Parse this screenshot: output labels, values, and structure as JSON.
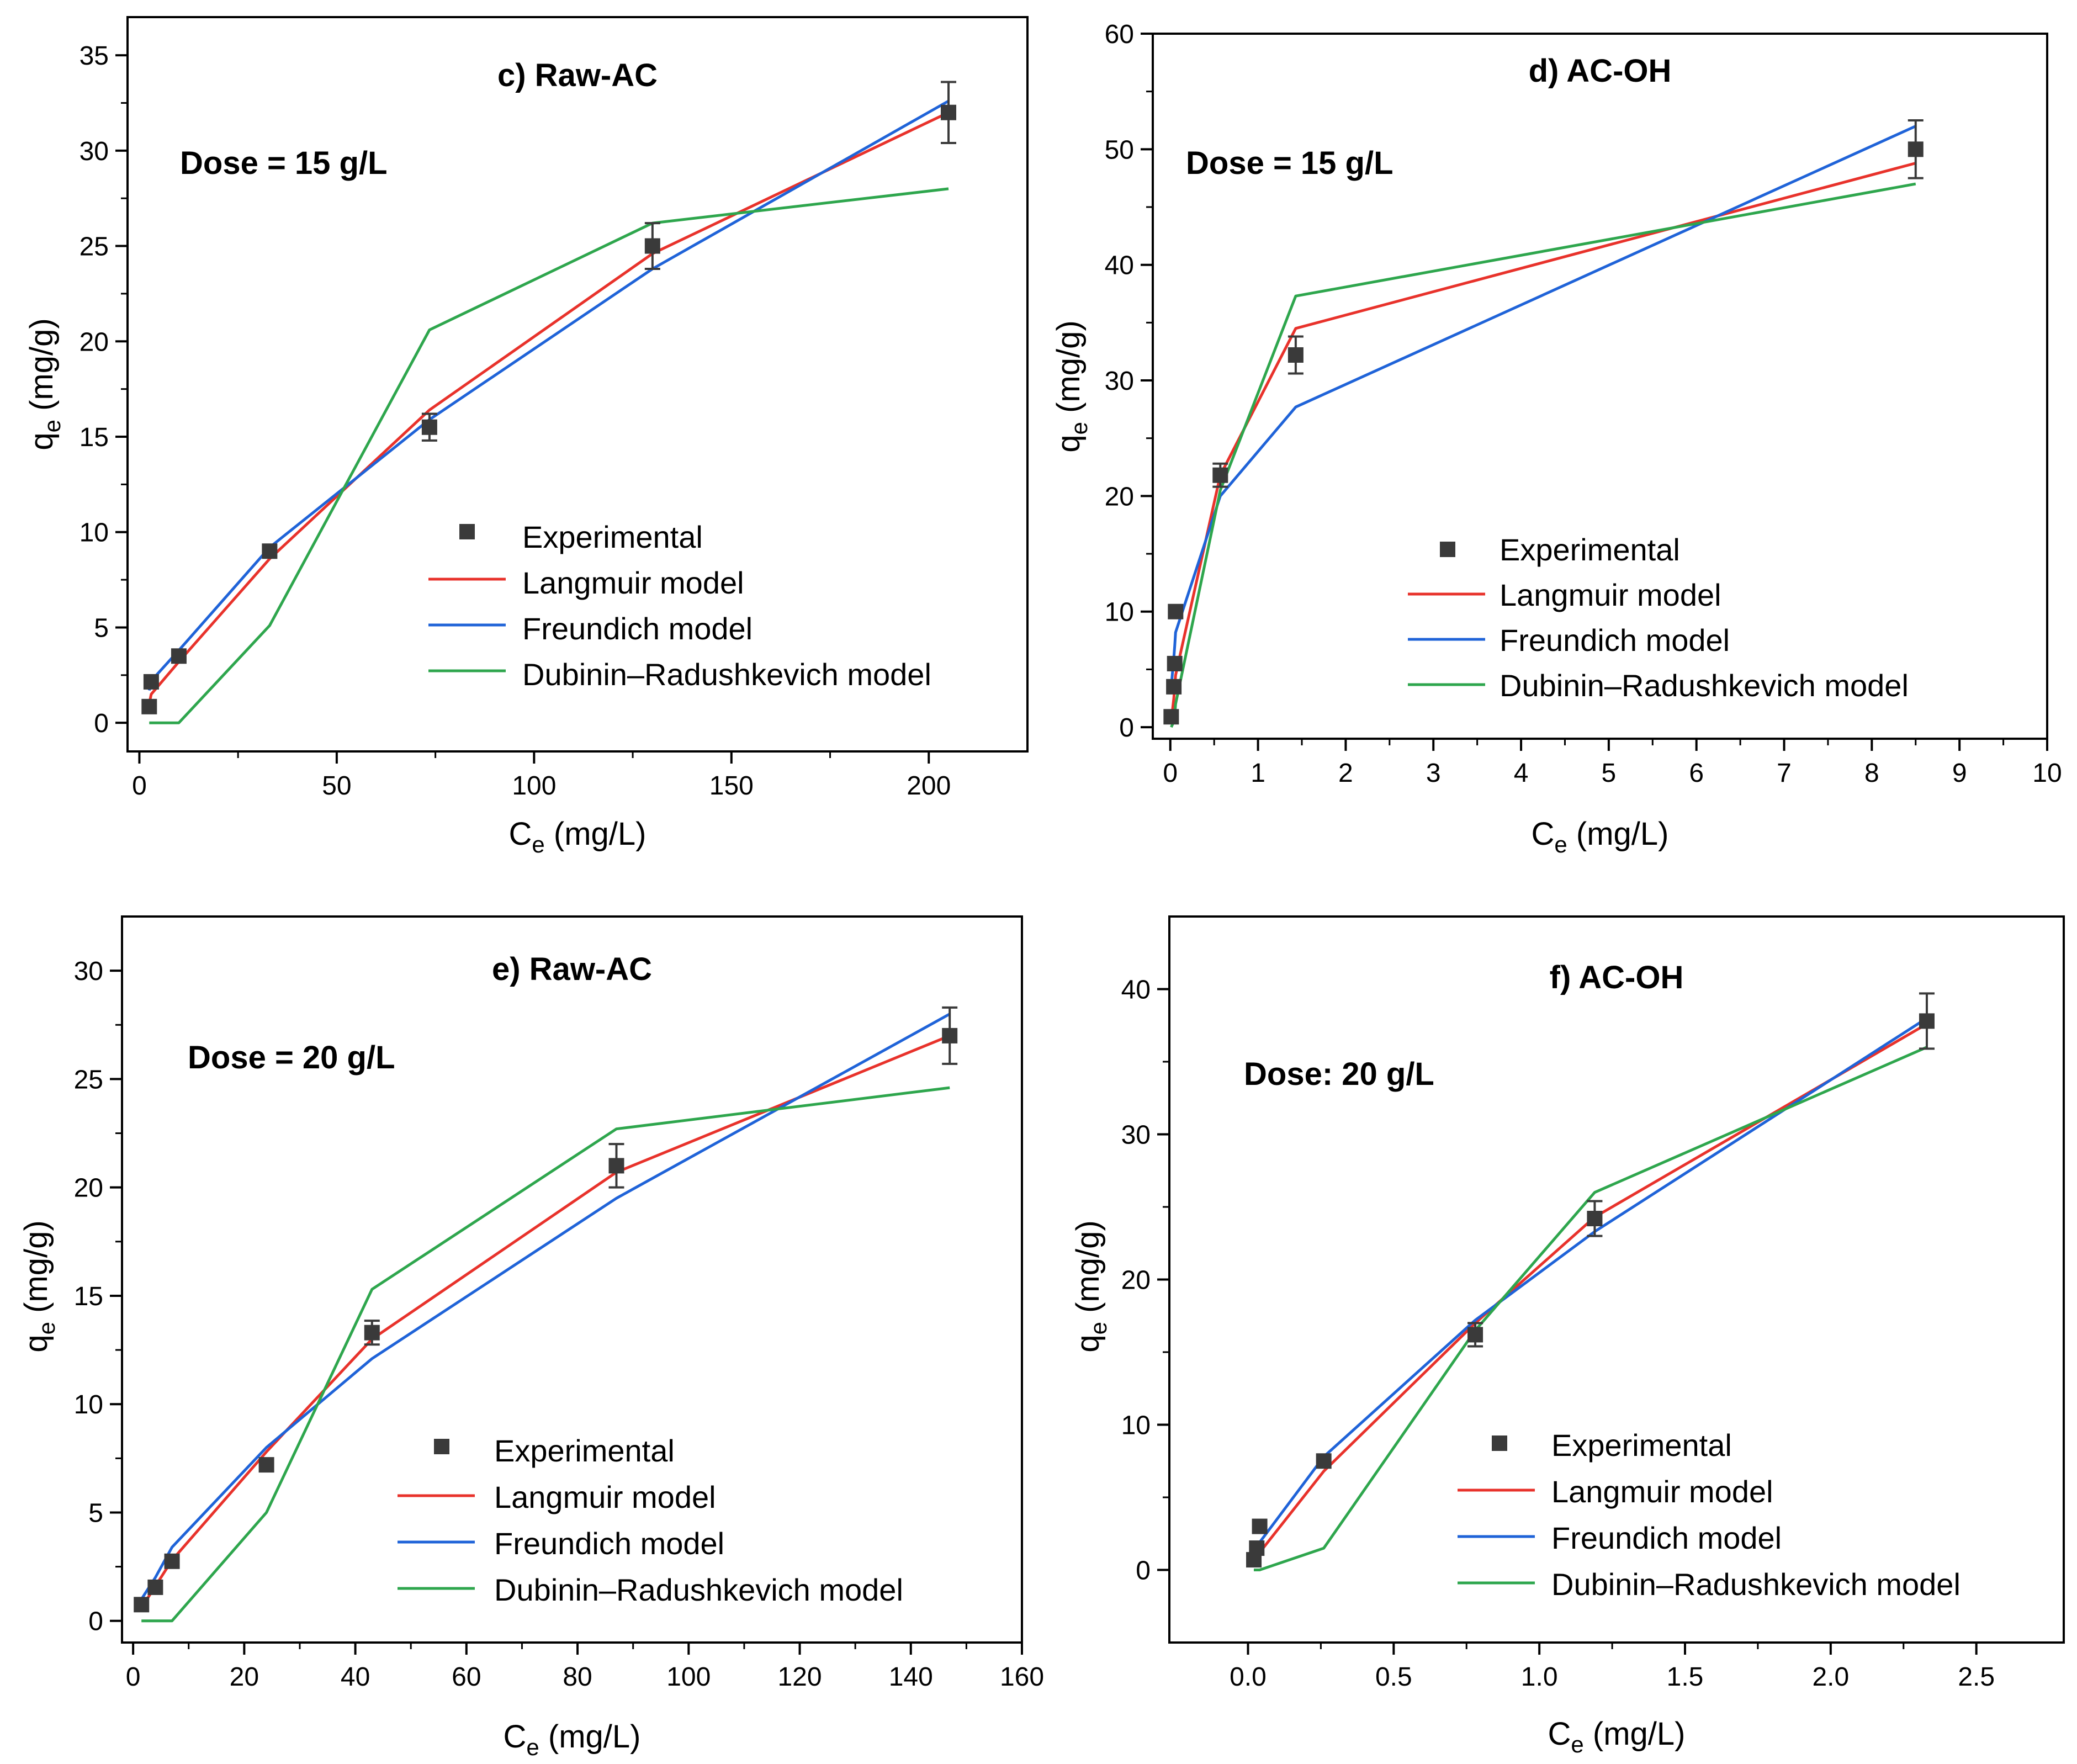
{
  "colors": {
    "experimental": "#3a3a3a",
    "langmuir": "#e8322b",
    "freundlich": "#1f63d8",
    "dr": "#2ea64d"
  },
  "legend": {
    "experimental": "Experimental",
    "langmuir": "Langmuir model",
    "freundlich": "Freundich model",
    "dr": "Dubinin–Radushkevich model"
  },
  "chart_data": [
    {
      "type": "scatter",
      "id": "c",
      "title": "c) Raw-AC",
      "annotation": "Dose = 15 g/L",
      "xlabel_main": "C",
      "xlabel_sub": "e",
      "xlabel_unit": " (mg/L)",
      "ylabel_main": "q",
      "ylabel_sub": "e",
      "ylabel_unit": " (mg/g)",
      "xlim": [
        -3,
        225
      ],
      "ylim": [
        -1.5,
        37
      ],
      "xticks": [
        0,
        50,
        100,
        150,
        200
      ],
      "yticks": [
        0,
        5,
        10,
        15,
        20,
        25,
        30,
        35
      ],
      "legend_position": "bottom-right",
      "experimental": {
        "x": [
          2.5,
          3,
          10,
          33,
          73.5,
          130,
          205
        ],
        "y": [
          0.85,
          2.15,
          3.5,
          9.0,
          15.5,
          25.0,
          32.0
        ],
        "err": [
          0,
          0,
          0,
          0,
          0.7,
          1.2,
          1.6
        ]
      },
      "series": [
        {
          "name": "Langmuir model",
          "key": "langmuir",
          "x": [
            2.5,
            3,
            10,
            33,
            73.5,
            130,
            205
          ],
          "y": [
            1.0,
            1.5,
            3.2,
            8.6,
            16.4,
            24.6,
            32.0
          ]
        },
        {
          "name": "Freundich model",
          "key": "freundlich",
          "x": [
            2.5,
            3,
            10,
            33,
            73.5,
            130,
            205
          ],
          "y": [
            1.7,
            2.2,
            3.8,
            9.2,
            15.9,
            23.8,
            32.6
          ]
        },
        {
          "name": "Dubinin–Radushkevich model",
          "key": "dr",
          "x": [
            2.5,
            10,
            33,
            73.5,
            130,
            205
          ],
          "y": [
            0,
            0,
            5.1,
            20.6,
            26.2,
            28.0
          ]
        }
      ]
    },
    {
      "type": "scatter",
      "id": "d",
      "title": "d) AC-OH",
      "annotation": "Dose = 15 g/L",
      "xlabel_main": "C",
      "xlabel_sub": "e",
      "xlabel_unit": " (mg/L)",
      "ylabel_main": "q",
      "ylabel_sub": "e",
      "ylabel_unit": " (mg/g)",
      "xlim": [
        -0.2,
        10
      ],
      "ylim": [
        -1,
        60
      ],
      "xticks": [
        0,
        1,
        2,
        3,
        4,
        5,
        6,
        7,
        8,
        9,
        10
      ],
      "yticks": [
        0,
        10,
        20,
        30,
        40,
        50,
        60
      ],
      "legend_position": "bottom-right",
      "experimental": {
        "x": [
          0.01,
          0.04,
          0.05,
          0.06,
          0.57,
          1.43,
          8.5
        ],
        "y": [
          0.9,
          3.5,
          5.5,
          10.0,
          21.8,
          32.2,
          50.0
        ],
        "err": [
          0,
          0,
          0,
          0,
          1.0,
          1.6,
          2.5
        ]
      },
      "series": [
        {
          "name": "Langmuir model",
          "key": "langmuir",
          "x": [
            0.01,
            0.04,
            0.05,
            0.06,
            0.57,
            1.43,
            8.5
          ],
          "y": [
            0.5,
            2.5,
            3.5,
            4.5,
            21.8,
            34.5,
            48.8
          ]
        },
        {
          "name": "Freundich model",
          "key": "freundlich",
          "x": [
            0.01,
            0.04,
            0.05,
            0.06,
            0.57,
            1.43,
            8.5
          ],
          "y": [
            3.5,
            6.0,
            7.0,
            8.2,
            20.0,
            27.7,
            52.0
          ]
        },
        {
          "name": "Dubinin–Radushkevich model",
          "key": "dr",
          "x": [
            0.01,
            0.04,
            0.05,
            0.06,
            0.57,
            1.43,
            8.5
          ],
          "y": [
            0.0,
            0.5,
            1.0,
            2.0,
            20.5,
            37.3,
            47.0
          ]
        }
      ]
    },
    {
      "type": "scatter",
      "id": "e",
      "title": "e) Raw-AC",
      "annotation": "Dose = 20 g/L",
      "xlabel_main": "C",
      "xlabel_sub": "e",
      "xlabel_unit": " (mg/L)",
      "ylabel_main": "q",
      "ylabel_sub": "e",
      "ylabel_unit": " (mg/g)",
      "xlim": [
        -2,
        160
      ],
      "ylim": [
        -1,
        32.5
      ],
      "xticks": [
        0,
        20,
        40,
        60,
        80,
        100,
        120,
        140,
        160
      ],
      "yticks": [
        0,
        5,
        10,
        15,
        20,
        25,
        30
      ],
      "legend_position": "bottom-right",
      "experimental": {
        "x": [
          1.5,
          4,
          7,
          24,
          43,
          87,
          147
        ],
        "y": [
          0.75,
          1.55,
          2.75,
          7.2,
          13.3,
          21.0,
          27.0
        ],
        "err": [
          0,
          0,
          0,
          0,
          0.55,
          1.0,
          1.3
        ]
      },
      "series": [
        {
          "name": "Langmuir model",
          "key": "langmuir",
          "x": [
            1.5,
            4,
            7,
            24,
            43,
            87,
            147
          ],
          "y": [
            0.6,
            1.6,
            2.8,
            7.8,
            13.0,
            20.7,
            27.0
          ]
        },
        {
          "name": "Freundich model",
          "key": "freundlich",
          "x": [
            1.5,
            4,
            7,
            24,
            43,
            87,
            147
          ],
          "y": [
            1.0,
            2.0,
            3.4,
            8.0,
            12.1,
            19.5,
            28.0
          ]
        },
        {
          "name": "Dubinin–Radushkevich model",
          "key": "dr",
          "x": [
            1.5,
            7,
            24,
            43,
            87,
            147
          ],
          "y": [
            0,
            0,
            5.0,
            15.3,
            22.7,
            24.6
          ]
        }
      ]
    },
    {
      "type": "scatter",
      "id": "f",
      "title": "f) AC-OH",
      "annotation": "Dose: 20 g/L",
      "xlabel_main": "C",
      "xlabel_sub": "e",
      "xlabel_unit": " (mg/L)",
      "ylabel_main": "q",
      "ylabel_sub": "e",
      "ylabel_unit": " (mg/g)",
      "xlim": [
        -0.27,
        2.8
      ],
      "ylim": [
        -5,
        45
      ],
      "xticks": [
        0.0,
        0.5,
        1.0,
        1.5,
        2.0,
        2.5
      ],
      "yticks": [
        0,
        10,
        20,
        30,
        40
      ],
      "legend_position": "bottom-right",
      "experimental": {
        "x": [
          0.02,
          0.03,
          0.04,
          0.26,
          0.78,
          1.19,
          2.33
        ],
        "y": [
          0.7,
          1.5,
          3.0,
          7.5,
          16.2,
          24.2,
          37.8
        ],
        "err": [
          0,
          0,
          0,
          0,
          0.8,
          1.2,
          1.9
        ]
      },
      "series": [
        {
          "name": "Langmuir model",
          "key": "langmuir",
          "x": [
            0.02,
            0.03,
            0.04,
            0.26,
            0.78,
            1.19,
            2.33
          ],
          "y": [
            0.5,
            0.9,
            1.2,
            6.8,
            17.0,
            24.3,
            37.6
          ]
        },
        {
          "name": "Freundich model",
          "key": "freundlich",
          "x": [
            0.02,
            0.03,
            0.04,
            0.26,
            0.78,
            1.19,
            2.33
          ],
          "y": [
            1.0,
            1.5,
            1.9,
            7.8,
            17.2,
            23.3,
            38.0
          ]
        },
        {
          "name": "Dubinin–Radushkevich model",
          "key": "dr",
          "x": [
            0.02,
            0.03,
            0.04,
            0.26,
            0.78,
            1.19,
            2.33
          ],
          "y": [
            0,
            0,
            0,
            1.5,
            16.5,
            26.0,
            36.0
          ]
        }
      ]
    }
  ]
}
